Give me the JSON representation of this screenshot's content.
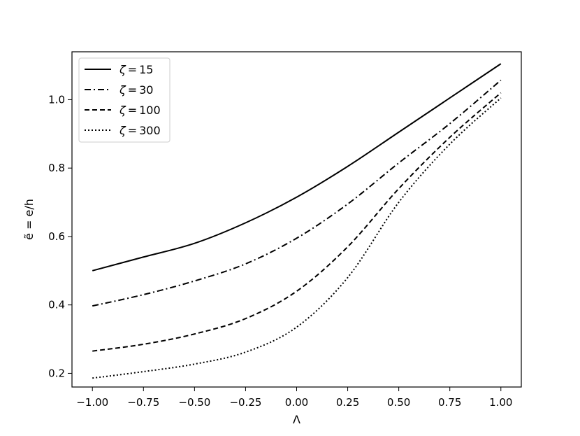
{
  "chart_data": {
    "type": "line",
    "xlabel": "Λ",
    "ylabel": "ẽ = e/h",
    "xlim": [
      -1.1,
      1.1
    ],
    "ylim": [
      0.16,
      1.14
    ],
    "xticks": [
      -1.0,
      -0.75,
      -0.5,
      -0.25,
      0.0,
      0.25,
      0.5,
      0.75,
      1.0
    ],
    "xtick_labels": [
      "−1.00",
      "−0.75",
      "−0.50",
      "−0.25",
      "0.00",
      "0.25",
      "0.50",
      "0.75",
      "1.00"
    ],
    "yticks": [
      0.2,
      0.4,
      0.6,
      0.8,
      1.0
    ],
    "ytick_labels": [
      "0.2",
      "0.4",
      "0.6",
      "0.8",
      "1.0"
    ],
    "grid": false,
    "legend_position": "upper-left",
    "x": [
      -1.0,
      -0.75,
      -0.5,
      -0.25,
      0.0,
      0.25,
      0.5,
      0.75,
      1.0
    ],
    "series": [
      {
        "name": "ζ = 15",
        "style": "solid",
        "values": [
          0.5,
          0.54,
          0.58,
          0.64,
          0.715,
          0.805,
          0.905,
          1.005,
          1.105
        ]
      },
      {
        "name": "ζ = 30",
        "style": "dashdot",
        "values": [
          0.397,
          0.43,
          0.47,
          0.52,
          0.595,
          0.695,
          0.815,
          0.93,
          1.057
        ]
      },
      {
        "name": "ζ = 100",
        "style": "dashed",
        "values": [
          0.265,
          0.285,
          0.315,
          0.36,
          0.44,
          0.57,
          0.74,
          0.89,
          1.02
        ]
      },
      {
        "name": "ζ = 300",
        "style": "dotted",
        "values": [
          0.186,
          0.205,
          0.227,
          0.262,
          0.335,
          0.48,
          0.7,
          0.87,
          1.005
        ]
      }
    ],
    "legend_labels": [
      {
        "symbol": "ζ",
        "op": "=",
        "value": "15"
      },
      {
        "symbol": "ζ",
        "op": "=",
        "value": "30"
      },
      {
        "symbol": "ζ",
        "op": "=",
        "value": "100"
      },
      {
        "symbol": "ζ",
        "op": "=",
        "value": "300"
      }
    ],
    "colors": {
      "line": "#000000",
      "axes": "#000000",
      "background": "#ffffff"
    }
  }
}
